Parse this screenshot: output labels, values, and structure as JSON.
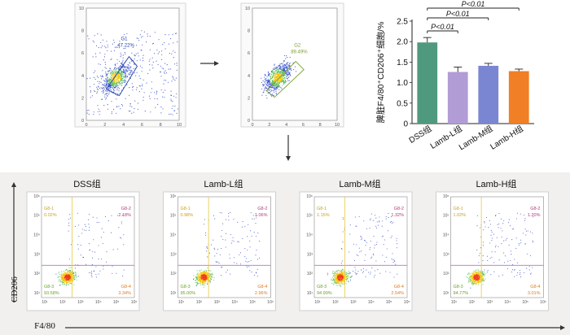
{
  "top_plots": [
    {
      "gate_name": "G1",
      "gate_pct": "47.22%",
      "y_ticks": [
        "0",
        "2",
        "4",
        "6",
        "8",
        "10"
      ],
      "x_ticks": [
        "0",
        "2",
        "4",
        "6",
        "8",
        "10"
      ],
      "gate_color": "#1f3fa8"
    },
    {
      "gate_name": "G2",
      "gate_pct": "89.49%",
      "y_ticks": [
        "0",
        "2",
        "4",
        "6",
        "8",
        "10"
      ],
      "x_ticks": [
        "0",
        "2",
        "4",
        "6",
        "8",
        "10"
      ],
      "gate_color": "#7aa030"
    }
  ],
  "bar_chart": {
    "ylabel": "脾脏F4/80⁺CD206⁺细胞/%",
    "y_ticks": [
      "0",
      "0.5",
      "1.0",
      "1.5",
      "2.0",
      "2.5"
    ],
    "significance": [
      "P<0.01",
      "P<0.01",
      "P<0.01"
    ]
  },
  "chart_data": {
    "type": "bar",
    "categories": [
      "DSS组",
      "Lamb-L组",
      "Lamb-M组",
      "Lamb-H组"
    ],
    "values": [
      1.98,
      1.26,
      1.41,
      1.28
    ],
    "errors": [
      0.12,
      0.12,
      0.06,
      0.05
    ],
    "ylim": [
      0,
      2.5
    ],
    "colors": [
      "#4f9a7e",
      "#b19cd6",
      "#7b86d3",
      "#f07f25"
    ],
    "xlabel": "",
    "ylabel": "脾脏F4/80⁺CD206⁺细胞/%"
  },
  "quad_panels": [
    {
      "title": "DSS组",
      "q1": "G8-1",
      "q1v": "0.02%",
      "q2": "G8-2",
      "q2v": "2.18%",
      "q3": "G8-3",
      "q3v": "93.58%",
      "q4": "G8-4",
      "q4v": "3.34%"
    },
    {
      "title": "Lamb-L组",
      "q1": "G8-1",
      "q1v": "0.98%",
      "q2": "G8-2",
      "q2v": "1.06%",
      "q3": "G8-3",
      "q3v": "95.00%",
      "q4": "G8-4",
      "q4v": "2.96%"
    },
    {
      "title": "Lamb-M组",
      "q1": "G8-1",
      "q1v": "1.15%",
      "q2": "G8-2",
      "q2v": "1.32%",
      "q3": "G8-3",
      "q3v": "94.99%",
      "q4": "G8-4",
      "q4v": "2.54%"
    },
    {
      "title": "Lamb-H组",
      "q1": "G8-1",
      "q1v": "1.02%",
      "q2": "G8-2",
      "q2v": "1.20%",
      "q3": "G8-3",
      "q3v": "94.77%",
      "q4": "G8-4",
      "q4v": "3.01%"
    }
  ],
  "quad_y_ticks": [
    "10¹",
    "10²",
    "10³",
    "10⁴",
    "10⁵",
    "10⁶"
  ],
  "quad_x_ticks": [
    "10¹",
    "10²",
    "10³",
    "10⁴",
    "10⁵",
    "10⁶"
  ],
  "axis_cd206": "CD206",
  "axis_f480": "F4/80",
  "quad_colors": {
    "q1": "#c8a020",
    "q2": "#b03a7a",
    "q3": "#6aa02a",
    "q4": "#e07a20",
    "gate_line": "#e8c840",
    "gate_line2": "#c070c0"
  }
}
